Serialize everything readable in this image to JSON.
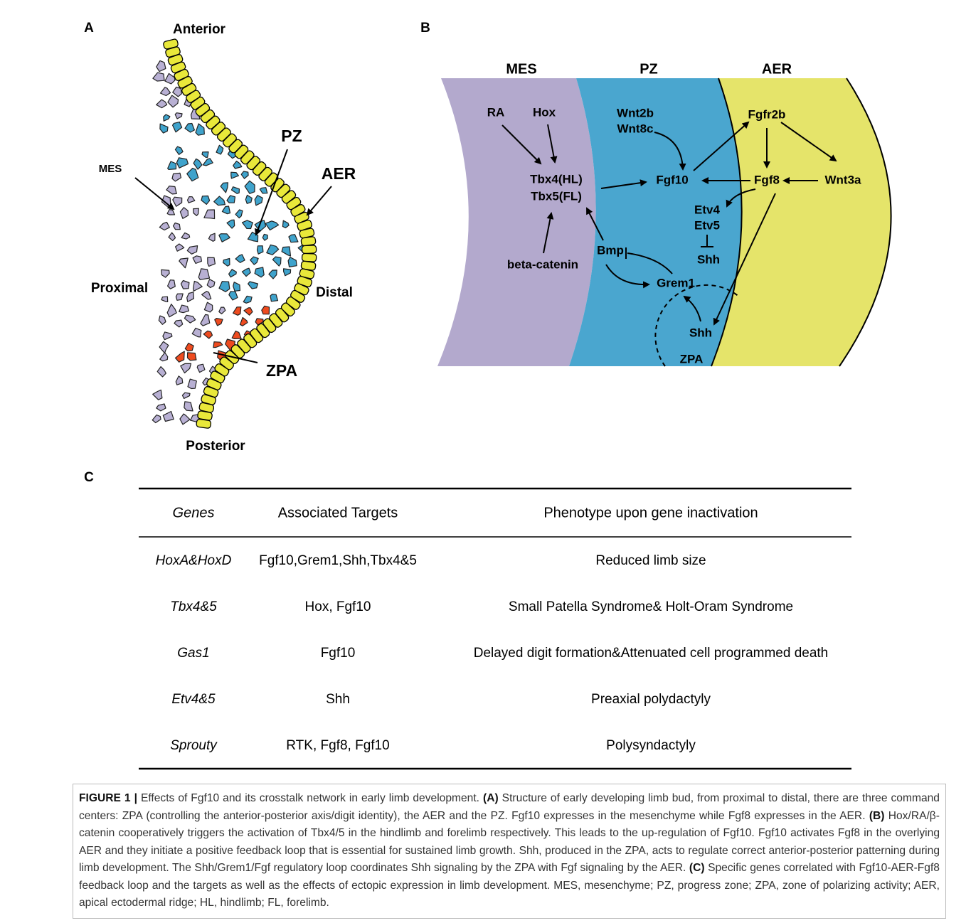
{
  "panel_a": {
    "label": "A",
    "labels": {
      "anterior": "Anterior",
      "pz": "PZ",
      "mes": "MES",
      "aer": "AER",
      "proximal": "Proximal",
      "distal": "Distal",
      "zpa": "ZPA",
      "posterior": "Posterior"
    }
  },
  "panel_b": {
    "label": "B",
    "zones": [
      "MES",
      "PZ",
      "AER"
    ],
    "nodes": {
      "ra": "RA",
      "hox": "Hox",
      "tbx4": "Tbx4(HL)",
      "tbx5": "Tbx5(FL)",
      "beta_catenin": "beta-catenin",
      "wnt2b": "Wnt2b",
      "wnt8c": "Wnt8c",
      "fgf10": "Fgf10",
      "bmp": "Bmp",
      "grem1": "Grem1",
      "shh_zpa": "Shh",
      "zpa": "ZPA",
      "fgfr2b": "Fgfr2b",
      "fgf8": "Fgf8",
      "wnt3a": "Wnt3a",
      "etv4": "Etv4",
      "etv5": "Etv5",
      "shh": "Shh"
    }
  },
  "panel_c": {
    "label": "C",
    "table": {
      "header": [
        "Genes",
        "Associated Targets",
        "Phenotype upon gene inactivation"
      ],
      "rows": [
        [
          "HoxA&HoxD",
          "Fgf10,Grem1,Shh,Tbx4&5",
          "Reduced limb size"
        ],
        [
          "Tbx4&5",
          "Hox, Fgf10",
          "Small Patella Syndrome& Holt-Oram Syndrome"
        ],
        [
          "Gas1",
          "Fgf10",
          "Delayed digit formation&Attenuated cell programmed death"
        ],
        [
          "Etv4&5",
          "Shh",
          "Preaxial polydactyly"
        ],
        [
          "Sprouty",
          "RTK, Fgf8, Fgf10",
          "Polysyndactyly"
        ]
      ]
    }
  },
  "caption": {
    "figure_label": "FIGURE 1 |",
    "intro": "Effects of Fgf10 and its crosstalk network in early limb development.",
    "parts": [
      {
        "label": "(A)",
        "text": "Structure of early developing limb bud, from proximal to distal, there are three command centers: ZPA (controlling the anterior-posterior axis/digit identity), the AER and the PZ. Fgf10 expresses in the mesenchyme while Fgf8 expresses in the AER."
      },
      {
        "label": "(B)",
        "text": "Hox/RA/β-catenin cooperatively triggers the activation of Tbx4/5 in the hindlimb and forelimb respectively. This leads to the up-regulation of Fgf10. Fgf10 activates Fgf8 in the overlying AER and they initiate a positive feedback loop that is essential for sustained limb growth. Shh, produced in the ZPA, acts to regulate correct anterior-posterior patterning during limb development. The Shh/Grem1/Fgf regulatory loop coordinates Shh signaling by the ZPA with Fgf signaling by the AER."
      },
      {
        "label": "(C)",
        "text": "Specific genes correlated with Fgf10-AER-Fgf8 feedback loop and the targets as well as the effects of ectopic expression in limb development. MES, mesenchyme; PZ, progress zone; ZPA, zone of polarizing activity; AER, apical ectodermal ridge; HL, hindlimb; FL, forelimb."
      }
    ]
  }
}
